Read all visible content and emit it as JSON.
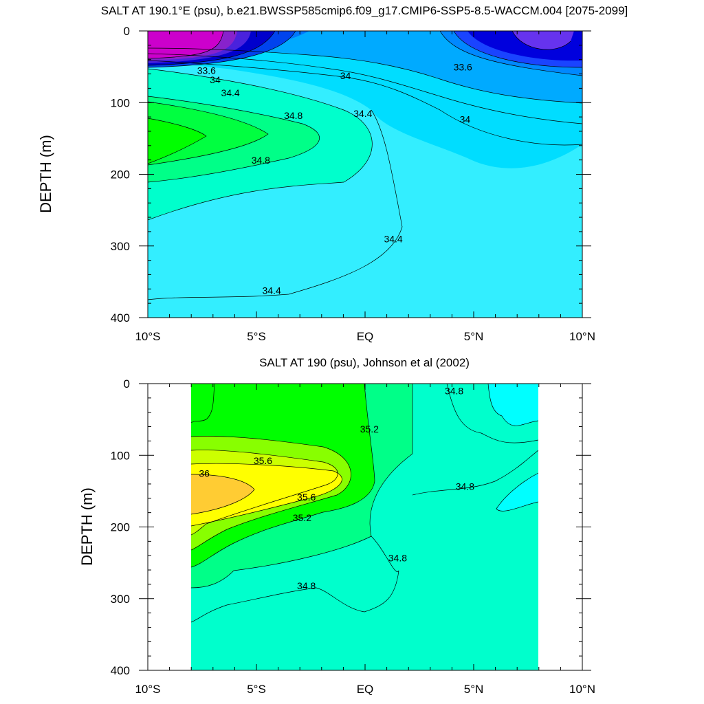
{
  "chart_data": [
    {
      "type": "contour",
      "title": "SALT AT 190.1°E (psu), b.e21.BWSSP585cmip6.f09_g17.CMIP6-SSP5-8.5-WACCM.004 [2075-2099]",
      "ylabel": "DEPTH (m)",
      "xlabel": "",
      "xlim": [
        -10,
        10
      ],
      "ylim": [
        400,
        0
      ],
      "x_tick_labels": [
        "10°S",
        "5°S",
        "EQ",
        "5°N",
        "10°N"
      ],
      "y_tick_labels": [
        "0",
        "100",
        "200",
        "300",
        "400"
      ],
      "contour_labels": [
        {
          "text": "33.6",
          "x": -7.3,
          "y": 60
        },
        {
          "text": "34",
          "x": -6.9,
          "y": 73
        },
        {
          "text": "34.4",
          "x": -6.2,
          "y": 91
        },
        {
          "text": "34",
          "x": -0.9,
          "y": 67
        },
        {
          "text": "34.4",
          "x": -0.1,
          "y": 120
        },
        {
          "text": "34.8",
          "x": -3.3,
          "y": 123
        },
        {
          "text": "34.8",
          "x": -4.8,
          "y": 185
        },
        {
          "text": "33.6",
          "x": 4.5,
          "y": 55
        },
        {
          "text": "34",
          "x": 4.6,
          "y": 128
        },
        {
          "text": "34.4",
          "x": 1.3,
          "y": 295
        },
        {
          "text": "34.4",
          "x": -4.3,
          "y": 367
        }
      ]
    },
    {
      "type": "contour",
      "title": "SALT AT 190 (psu), Johnson et al (2002)",
      "ylabel": "DEPTH (m)",
      "xlabel": "",
      "xlim": [
        -10,
        10
      ],
      "ylim": [
        400,
        0
      ],
      "data_xrange": [
        -8,
        8
      ],
      "x_tick_labels": [
        "10°S",
        "5°S",
        "EQ",
        "5°N",
        "10°N"
      ],
      "y_tick_labels": [
        "0",
        "100",
        "200",
        "300",
        "400"
      ],
      "contour_labels": [
        {
          "text": "34.8",
          "x": 4.1,
          "y": 15
        },
        {
          "text": "35.2",
          "x": 0.2,
          "y": 68
        },
        {
          "text": "35.6",
          "x": -4.7,
          "y": 112
        },
        {
          "text": "36",
          "x": -7.4,
          "y": 130
        },
        {
          "text": "35.6",
          "x": -2.7,
          "y": 163
        },
        {
          "text": "35.2",
          "x": -2.9,
          "y": 192
        },
        {
          "text": "34.8",
          "x": 4.6,
          "y": 148
        },
        {
          "text": "34.8",
          "x": 1.5,
          "y": 248
        },
        {
          "text": "34.8",
          "x": -2.7,
          "y": 287
        }
      ]
    }
  ]
}
